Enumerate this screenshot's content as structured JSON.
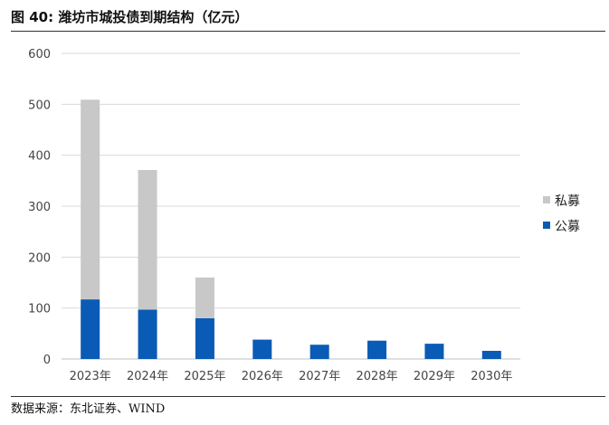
{
  "header": {
    "figure_label": "图 40:",
    "title": "潍坊市城投债到期结构（亿元）"
  },
  "footer": {
    "source": "数据来源：东北证券、WIND"
  },
  "chart_data": {
    "type": "bar",
    "stacked": true,
    "title": "潍坊市城投债到期结构（亿元）",
    "xlabel": "",
    "ylabel": "",
    "categories": [
      "2023年",
      "2024年",
      "2025年",
      "2026年",
      "2027年",
      "2028年",
      "2029年",
      "2030年"
    ],
    "series": [
      {
        "name": "公募",
        "color": "#0a5bb5",
        "values": [
          117,
          97,
          80,
          38,
          28,
          36,
          30,
          16
        ]
      },
      {
        "name": "私募",
        "color": "#c8c8c8",
        "values": [
          392,
          274,
          80,
          0,
          0,
          0,
          0,
          0
        ]
      }
    ],
    "ylim": [
      0,
      600
    ],
    "yticks": [
      "0",
      "100",
      "200",
      "300",
      "400",
      "500",
      "600"
    ],
    "grid": true,
    "legend": "right",
    "legend_order": [
      "私募",
      "公募"
    ]
  }
}
